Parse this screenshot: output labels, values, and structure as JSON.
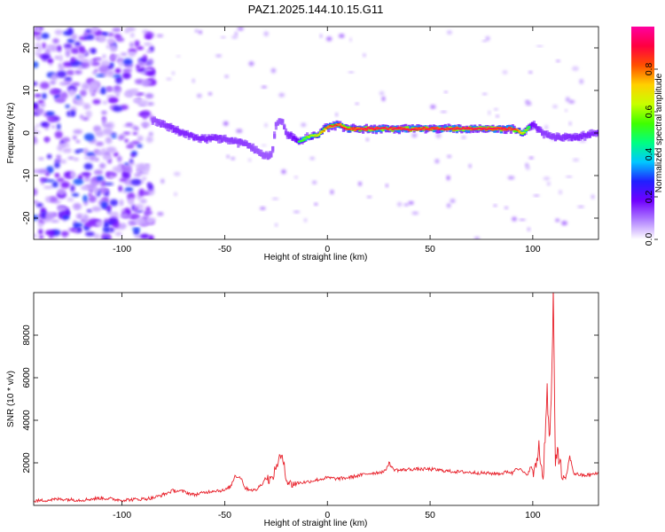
{
  "title": "PAZ1.2025.144.10.15.G11",
  "chart_data": [
    {
      "type": "heatmap",
      "xlabel": "Height of straight line (km)",
      "ylabel": "Frequency (Hz)",
      "xlim": [
        -143,
        132
      ],
      "ylim": [
        -25,
        25
      ],
      "x_ticks": [
        -100,
        -50,
        0,
        50,
        100
      ],
      "y_ticks": [
        -20,
        -10,
        0,
        10,
        20
      ],
      "colorbar": {
        "label": "Normalized spectral amplitude",
        "range": [
          0,
          1
        ],
        "ticks": [
          0.0,
          0.2,
          0.4,
          0.6,
          0.8
        ],
        "tick_labels": [
          "0.0",
          "0.2",
          "0.4",
          "0.6",
          "0.8"
        ],
        "colormap": [
          "#ffffff",
          "#b080ff",
          "#7000ff",
          "#2020ff",
          "#00c8ff",
          "#00ff80",
          "#40ff00",
          "#c8ff00",
          "#ffd000",
          "#ff5000",
          "#ff0040",
          "#ff00a0"
        ]
      },
      "ridge": {
        "x": [
          -85,
          -80,
          -75,
          -70,
          -65,
          -60,
          -55,
          -50,
          -45,
          -40,
          -35,
          -30,
          -27,
          -25,
          -22,
          -20,
          -17,
          -14,
          -10,
          -5,
          0,
          5,
          10,
          20,
          30,
          50,
          70,
          90,
          95,
          100,
          105,
          110,
          120,
          132
        ],
        "y": [
          3,
          2,
          1,
          0,
          -1,
          -1.5,
          -1,
          -1.5,
          -2,
          -2.5,
          -4,
          -5.5,
          -5,
          2,
          3,
          0,
          -1,
          -2,
          -1,
          -0.5,
          1.5,
          2,
          1,
          1,
          1,
          1,
          1,
          1,
          0,
          2,
          0,
          -1,
          -1,
          0
        ],
        "amplitude": [
          0.35,
          0.4,
          0.45,
          0.45,
          0.45,
          0.45,
          0.45,
          0.4,
          0.4,
          0.4,
          0.35,
          0.3,
          0.3,
          0.3,
          0.35,
          0.4,
          0.5,
          0.55,
          0.6,
          0.7,
          0.85,
          0.9,
          0.9,
          0.95,
          0.95,
          0.95,
          0.95,
          0.95,
          0.7,
          0.5,
          0.4,
          0.4,
          0.45,
          0.45
        ]
      },
      "noise_region": {
        "x": [
          -143,
          -85
        ],
        "y": [
          -25,
          25
        ],
        "amplitude": [
          0.05,
          0.3
        ]
      }
    },
    {
      "type": "line",
      "xlabel": "Height of straight line (km)",
      "ylabel": "SNR (10 * v/v)",
      "xlim": [
        -143,
        132
      ],
      "ylim": [
        0,
        10000
      ],
      "x_ticks": [
        -100,
        -50,
        0,
        50,
        100
      ],
      "y_ticks": [
        2000,
        4000,
        6000,
        8000
      ],
      "color": "#e8202a",
      "series": [
        {
          "x": [
            -143,
            -130,
            -120,
            -110,
            -100,
            -90,
            -85,
            -80,
            -75,
            -70,
            -65,
            -60,
            -55,
            -50,
            -47,
            -45,
            -42,
            -40,
            -35,
            -32,
            -30,
            -27,
            -25,
            -23,
            -21,
            -20,
            -18,
            -15,
            -10,
            -5,
            0,
            5,
            10,
            15,
            20,
            25,
            28,
            30,
            32,
            35,
            40,
            50,
            60,
            70,
            80,
            85,
            88,
            90,
            92,
            95,
            97,
            99,
            101,
            103,
            105,
            107,
            108,
            109,
            110,
            111,
            112,
            114,
            116,
            118,
            120,
            125,
            132
          ],
          "y": [
            200,
            300,
            250,
            350,
            250,
            300,
            350,
            500,
            700,
            650,
            500,
            600,
            700,
            700,
            900,
            1400,
            1300,
            800,
            700,
            1000,
            1300,
            1200,
            1800,
            2300,
            2000,
            1200,
            1000,
            1050,
            1100,
            1200,
            1300,
            1250,
            1300,
            1400,
            1500,
            1550,
            1600,
            2000,
            1700,
            1650,
            1700,
            1700,
            1600,
            1550,
            1500,
            1500,
            1600,
            1500,
            1800,
            1600,
            1400,
            1800,
            1500,
            2800,
            1200,
            5500,
            3000,
            4800,
            9800,
            1800,
            2800,
            1500,
            1200,
            2300,
            1500,
            1400,
            1500
          ]
        }
      ]
    }
  ]
}
